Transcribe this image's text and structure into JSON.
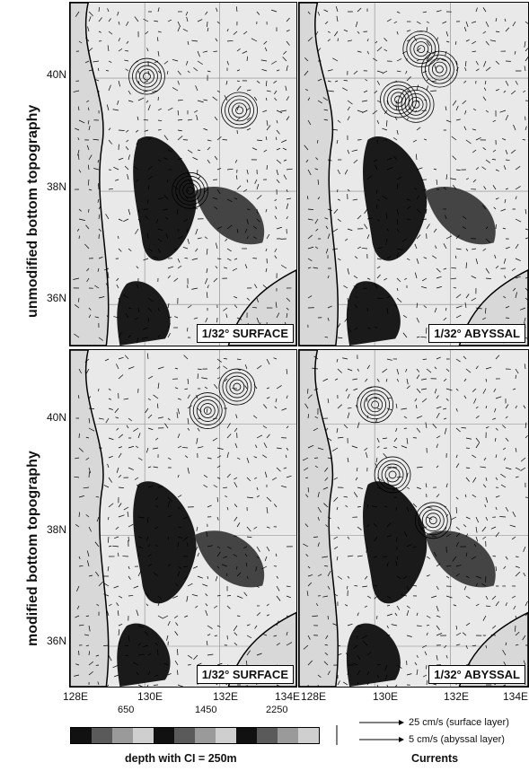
{
  "row_labels": {
    "top": "unmodified bottom topography",
    "bottom": "modified bottom topography"
  },
  "latitude_ticks": [
    "40N",
    "38N",
    "36N"
  ],
  "longitude_ticks": [
    "128E",
    "130E",
    "132E",
    "134E",
    "128E",
    "130E",
    "132E",
    "134E"
  ],
  "panels": [
    {
      "label": "1/32° SURFACE",
      "layer": "surface",
      "topography": "unmodified"
    },
    {
      "label": "1/32° ABYSSAL",
      "layer": "abyssal",
      "topography": "unmodified"
    },
    {
      "label": "1/32° SURFACE",
      "layer": "surface",
      "topography": "modified"
    },
    {
      "label": "1/32° ABYSSAL",
      "layer": "abyssal",
      "topography": "modified"
    }
  ],
  "depth_legend": {
    "tick_labels": [
      "650",
      "1450",
      "2250"
    ],
    "caption": "depth with CI = 250m",
    "shades": [
      "#111111",
      "#5a5a5a",
      "#9a9a9a",
      "#cfcfcf",
      "#111111",
      "#5a5a5a",
      "#9a9a9a",
      "#cfcfcf",
      "#111111",
      "#5a5a5a",
      "#9a9a9a",
      "#cfcfcf"
    ]
  },
  "current_legend": {
    "surface": "25 cm/s (surface layer)",
    "abyssal": "5 cm/s (abyssal layer)",
    "caption": "Currents"
  }
}
